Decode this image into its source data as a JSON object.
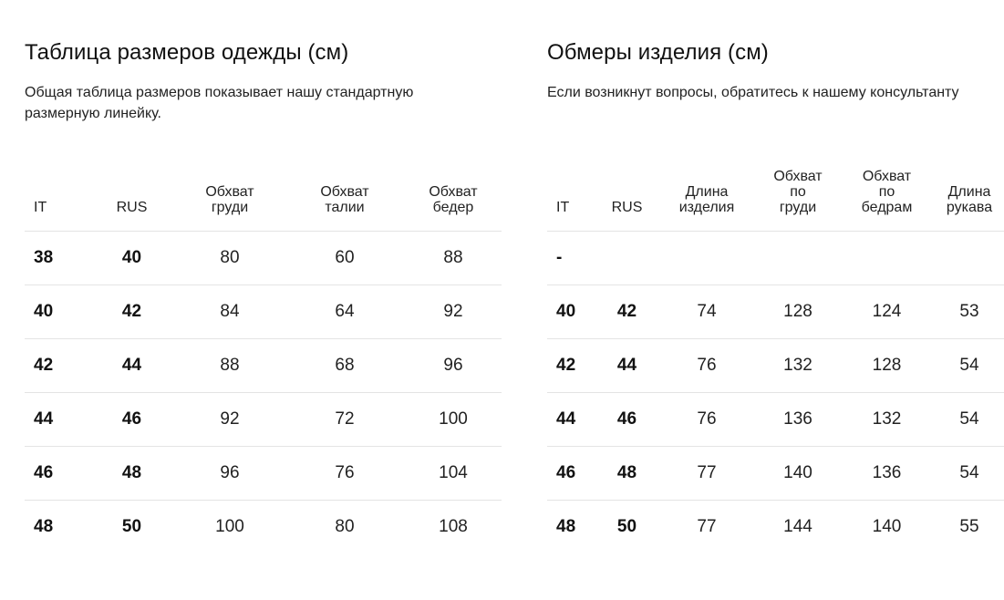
{
  "size_chart": {
    "title": "Таблица размеров одежды (см)",
    "description_line1": "Общая таблица размеров показывает нашу стандартную",
    "description_line2": "размерную линейку.",
    "headers": [
      [
        "IT"
      ],
      [
        "RUS"
      ],
      [
        "Обхват",
        "груди"
      ],
      [
        "Обхват",
        "талии"
      ],
      [
        "Обхват",
        "бедер"
      ]
    ],
    "rows": [
      [
        "38",
        "40",
        "80",
        "60",
        "88"
      ],
      [
        "40",
        "42",
        "84",
        "64",
        "92"
      ],
      [
        "42",
        "44",
        "88",
        "68",
        "96"
      ],
      [
        "44",
        "46",
        "92",
        "72",
        "100"
      ],
      [
        "46",
        "48",
        "96",
        "76",
        "104"
      ],
      [
        "48",
        "50",
        "100",
        "80",
        "108"
      ]
    ]
  },
  "measurements": {
    "title": "Обмеры изделия (см)",
    "description": "Если возникнут вопросы, обратитесь к нашему консультанту",
    "headers": [
      [
        "IT"
      ],
      [
        "RUS"
      ],
      [
        "Длина",
        "изделия"
      ],
      [
        "Обхват",
        "по",
        "груди"
      ],
      [
        "Обхват",
        "по",
        "бедрам"
      ],
      [
        "Длина",
        "рукава"
      ]
    ],
    "rows": [
      [
        "-",
        "",
        "",
        "",
        "",
        ""
      ],
      [
        "40",
        "42",
        "74",
        "128",
        "124",
        "53"
      ],
      [
        "42",
        "44",
        "76",
        "132",
        "128",
        "54"
      ],
      [
        "44",
        "46",
        "76",
        "136",
        "132",
        "54"
      ],
      [
        "46",
        "48",
        "77",
        "140",
        "136",
        "54"
      ],
      [
        "48",
        "50",
        "77",
        "144",
        "140",
        "55"
      ]
    ]
  }
}
